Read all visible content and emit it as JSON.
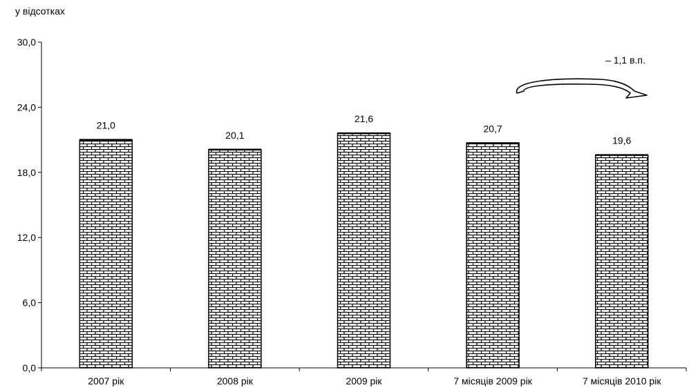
{
  "chart_data": {
    "type": "bar",
    "unit_label": "у відсотках",
    "categories": [
      "2007 рік",
      "2008 рік",
      "2009 рік",
      "7 місяців 2009 рік",
      "7 місяців 2010 рік"
    ],
    "values": [
      21.0,
      20.1,
      21.6,
      20.7,
      19.6
    ],
    "value_labels": [
      "21,0",
      "20,1",
      "21,6",
      "20,7",
      "19,6"
    ],
    "y_ticks": [
      0,
      6,
      12,
      18,
      24,
      30
    ],
    "y_tick_labels": [
      "0,0",
      "6,0",
      "12,0",
      "18,0",
      "24,0",
      "30,0"
    ],
    "ylim": [
      0,
      30
    ],
    "grid": false,
    "annotation": "– 1,1 в.п.",
    "bar_pattern": "brick"
  }
}
